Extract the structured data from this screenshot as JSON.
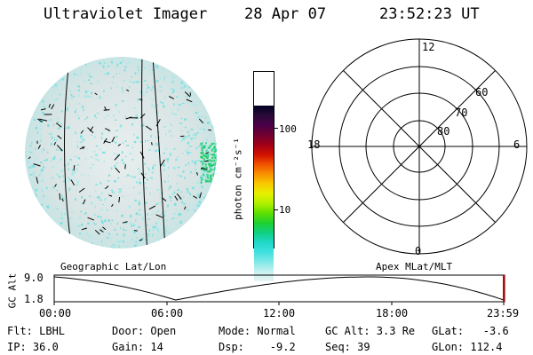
{
  "header": {
    "title": "Ultraviolet Imager",
    "date": "28 Apr 07",
    "time": "23:52:23 UT"
  },
  "colorbar": {
    "label": "photon cm⁻²s⁻¹",
    "ticks": [
      "100",
      "10"
    ],
    "colors": [
      "#000022",
      "#2a0a38",
      "#4a0048",
      "#700030",
      "#a00018",
      "#d01000",
      "#f05000",
      "#f89000",
      "#f8c800",
      "#e8f000",
      "#b0f000",
      "#60e000",
      "#20d030",
      "#10d080",
      "#20d8c8",
      "#40e0e0",
      "#80e8e8",
      "#c8f0f0",
      "#e8f4f4"
    ]
  },
  "polar_plot": {
    "mlt_labels": {
      "top": "12",
      "left": "18",
      "right": "6",
      "bottom": "0"
    },
    "lat_labels": [
      "60",
      "70",
      "80"
    ]
  },
  "orbit_panel": {
    "left_label": "Geographic Lat/Lon",
    "right_label": "Apex MLat/MLT",
    "y_axis_label": "GC Alt",
    "y_ticks": [
      "9.0",
      "1.8"
    ],
    "x_ticks": [
      "00:00",
      "06:00",
      "12:00",
      "18:00",
      "23:59"
    ]
  },
  "status": {
    "flt": "Flt: LBHL",
    "ip": "IP: 36.0",
    "door": "Door: Open",
    "gain": "Gain: 14",
    "mode": "Mode: Normal",
    "dsp": "Dsp:    -9.2",
    "gc_alt": "GC Alt: 3.3 Re",
    "seq": "Seq: 39",
    "glat": "GLat:   -3.6",
    "glon": "GLon: 112.4"
  },
  "colors": {
    "image_base": "#e6ecec",
    "image_cyan": "#7ee0e0",
    "image_green": "#22cc66",
    "grid_line": "#000000"
  }
}
